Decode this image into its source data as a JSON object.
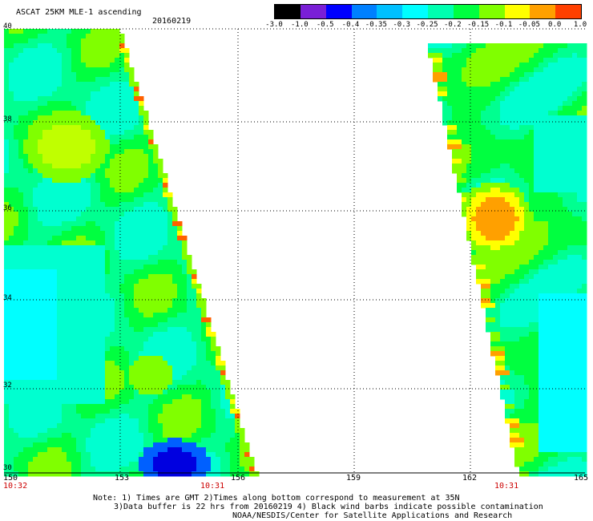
{
  "header": {
    "title": "ASCAT 25KM MLE-1 ascending",
    "date": "20160219"
  },
  "colorbar": {
    "labels": [
      "-3.0",
      "-1.0",
      "-0.5",
      "-0.4",
      "-0.35",
      "-0.3",
      "-0.25",
      "-0.2",
      "-0.15",
      "-0.1",
      "-0.05",
      "0.0",
      "1.0"
    ],
    "colors": [
      "#000000",
      "#7a1fd6",
      "#0000ff",
      "#0080ff",
      "#00c0ff",
      "#00ffff",
      "#00ffb0",
      "#00ff40",
      "#80ff00",
      "#ffff00",
      "#ffa000",
      "#ff4000"
    ]
  },
  "axes": {
    "lat_labels": [
      "40",
      "38",
      "36",
      "34",
      "32",
      "30"
    ],
    "lon_labels": [
      "150",
      "153",
      "156",
      "159",
      "162",
      "165"
    ]
  },
  "swath_times": {
    "left_start": "10:32",
    "left_mid": "10:31",
    "right_mid": "10:31"
  },
  "notes": {
    "line1": "Note: 1) Times are GMT 2)Times along bottom correspond to measurement at 35N",
    "line2": "3)Data buffer is 22 hrs from 20160219 4) Black wind barbs indicate possible contamination",
    "line3": "NOAA/NESDIS/Center for Satellite Applications and Research"
  },
  "field_palette": {
    "cyan": "#00ffff",
    "aqua": "#00ffd0",
    "teal_green": "#00ff90",
    "green": "#00ff40",
    "lime": "#80ff00",
    "yellow_green": "#c0ff00",
    "yellow": "#ffff00",
    "orange": "#ffa000",
    "red_orange": "#ff6000",
    "blue": "#0060ff",
    "deep_blue": "#0000e0"
  }
}
